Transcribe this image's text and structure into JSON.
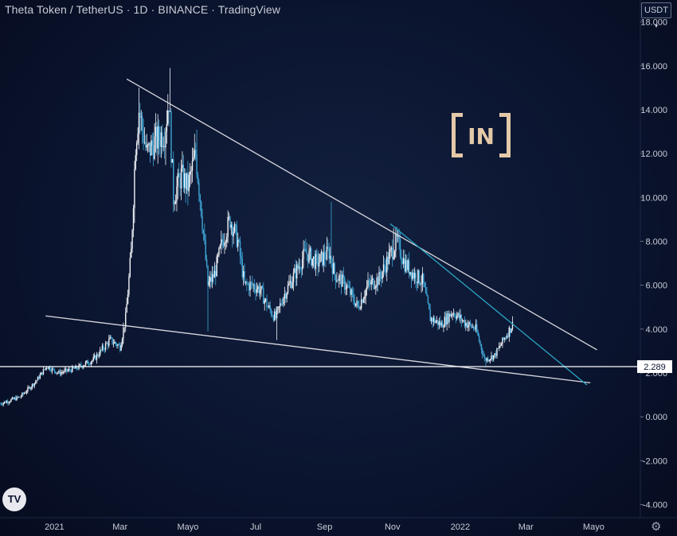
{
  "header": {
    "title": "Theta Token / TetherUS · 1D · BINANCE · TradingView",
    "currency": "USDT"
  },
  "chart_data": {
    "type": "candlestick",
    "ylim": [
      -4.6,
      19.0
    ],
    "y_ticks": [
      {
        "value": 18,
        "label": "18.000"
      },
      {
        "value": 16,
        "label": "16.000"
      },
      {
        "value": 14,
        "label": "14.000"
      },
      {
        "value": 12,
        "label": "12.000"
      },
      {
        "value": 10,
        "label": "10.000"
      },
      {
        "value": 8,
        "label": "8.000"
      },
      {
        "value": 6,
        "label": "6.000"
      },
      {
        "value": 4,
        "label": "4.000"
      },
      {
        "value": 2,
        "label": "2.000"
      },
      {
        "value": 0,
        "label": "0.000"
      },
      {
        "value": -2,
        "label": "-2.000"
      },
      {
        "value": -4,
        "label": "-4.000"
      }
    ],
    "x_ticks": [
      {
        "date": "2021-01-01",
        "label": "2021"
      },
      {
        "date": "2021-03-01",
        "label": "Mar"
      },
      {
        "date": "2021-05-01",
        "label": "Mayo"
      },
      {
        "date": "2021-07-01",
        "label": "Jul"
      },
      {
        "date": "2021-09-01",
        "label": "Sep"
      },
      {
        "date": "2021-11-01",
        "label": "Nov"
      },
      {
        "date": "2022-01-01",
        "label": "2022"
      },
      {
        "date": "2022-03-01",
        "label": "Mar"
      },
      {
        "date": "2022-05-01",
        "label": "Mayo"
      }
    ],
    "xlim": [
      "2020-11-13",
      "2022-06-12"
    ],
    "price_path": [
      [
        "2020-11-13",
        0.6
      ],
      [
        "2020-12-01",
        0.9
      ],
      [
        "2020-12-15",
        1.6
      ],
      [
        "2020-12-25",
        2.3
      ],
      [
        "2021-01-05",
        2.0
      ],
      [
        "2021-01-20",
        2.2
      ],
      [
        "2021-02-05",
        2.6
      ],
      [
        "2021-02-20",
        3.5
      ],
      [
        "2021-03-01",
        3.2
      ],
      [
        "2021-03-06",
        4.5
      ],
      [
        "2021-03-11",
        7.5
      ],
      [
        "2021-03-15",
        12.5
      ],
      [
        "2021-03-18",
        14.0
      ],
      [
        "2021-03-25",
        12.0
      ],
      [
        "2021-04-01",
        12.5
      ],
      [
        "2021-04-10",
        13.0
      ],
      [
        "2021-04-14",
        14.5
      ],
      [
        "2021-04-18",
        10.0
      ],
      [
        "2021-04-25",
        11.0
      ],
      [
        "2021-05-01",
        10.5
      ],
      [
        "2021-05-08",
        12.0
      ],
      [
        "2021-05-13",
        9.5
      ],
      [
        "2021-05-19",
        6.0
      ],
      [
        "2021-05-25",
        6.5
      ],
      [
        "2021-06-01",
        8.0
      ],
      [
        "2021-06-08",
        9.0
      ],
      [
        "2021-06-15",
        8.0
      ],
      [
        "2021-06-21",
        6.0
      ],
      [
        "2021-06-28",
        6.0
      ],
      [
        "2021-07-05",
        5.8
      ],
      [
        "2021-07-12",
        5.0
      ],
      [
        "2021-07-19",
        4.5
      ],
      [
        "2021-07-26",
        5.5
      ],
      [
        "2021-08-05",
        6.5
      ],
      [
        "2021-08-15",
        7.5
      ],
      [
        "2021-08-25",
        7.0
      ],
      [
        "2021-09-05",
        7.5
      ],
      [
        "2021-09-10",
        6.5
      ],
      [
        "2021-09-20",
        6.0
      ],
      [
        "2021-10-01",
        5.0
      ],
      [
        "2021-10-10",
        6.0
      ],
      [
        "2021-10-20",
        6.3
      ],
      [
        "2021-10-31",
        7.5
      ],
      [
        "2021-11-05",
        8.0
      ],
      [
        "2021-11-12",
        7.0
      ],
      [
        "2021-11-20",
        6.5
      ],
      [
        "2021-11-28",
        6.2
      ],
      [
        "2021-12-05",
        4.5
      ],
      [
        "2021-12-15",
        4.2
      ],
      [
        "2021-12-25",
        4.8
      ],
      [
        "2022-01-05",
        4.3
      ],
      [
        "2022-01-15",
        4.0
      ],
      [
        "2022-01-23",
        2.6
      ],
      [
        "2022-02-01",
        2.8
      ],
      [
        "2022-02-10",
        3.6
      ],
      [
        "2022-02-17",
        4.2
      ]
    ],
    "spikes": [
      [
        "2021-03-18",
        15.0
      ],
      [
        "2021-04-15",
        15.9
      ],
      [
        "2021-05-09",
        13.1
      ],
      [
        "2021-05-19",
        3.9
      ],
      [
        "2021-07-20",
        3.5
      ],
      [
        "2021-09-07",
        9.8
      ],
      [
        "2021-11-02",
        8.6
      ],
      [
        "2022-01-24",
        2.3
      ]
    ],
    "lines": [
      {
        "kind": "trendline",
        "color": "#d8d8de",
        "from": [
          "2021-03-07",
          15.4
        ],
        "to": [
          "2022-05-04",
          3.05
        ]
      },
      {
        "kind": "trendline",
        "color": "#d8d8de",
        "from": [
          "2020-12-24",
          4.6
        ],
        "to": [
          "2022-04-28",
          1.55
        ]
      },
      {
        "kind": "trendline",
        "color": "#2aa6c4",
        "from": [
          "2021-10-30",
          8.8
        ],
        "to": [
          "2022-04-25",
          1.45
        ]
      },
      {
        "kind": "horizontal",
        "color": "#ffffff",
        "value": 2.289
      }
    ],
    "last_price_label": "2.289"
  },
  "logo": {
    "text": "IN"
  },
  "tradingview_logo": {
    "text": "TV"
  }
}
